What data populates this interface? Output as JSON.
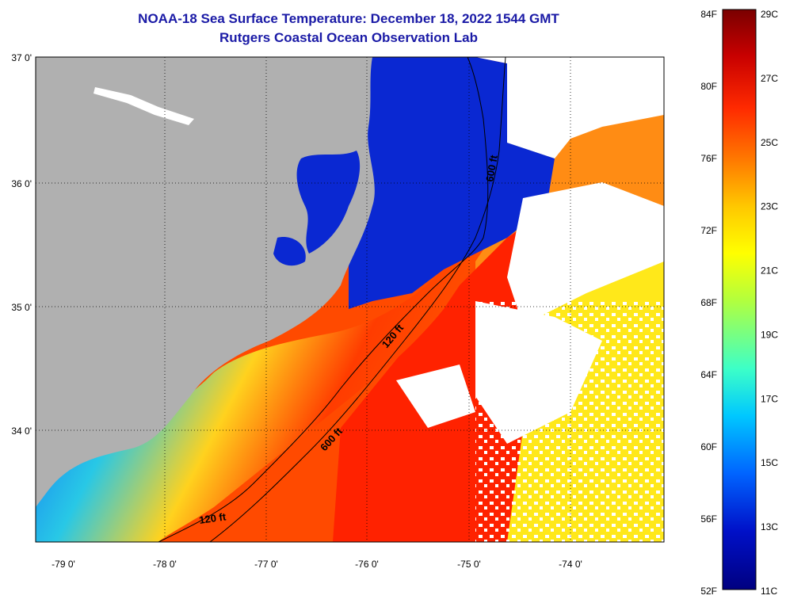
{
  "title": {
    "line1": "NOAA-18 Sea Surface Temperature:  December 18, 2022 1544 GMT",
    "line2": "Rutgers Coastal Ocean Observation Lab"
  },
  "axes": {
    "lat_labels": [
      "37 0'",
      "36 0'",
      "35 0'",
      "34 0'"
    ],
    "lon_labels": [
      "-79 0'",
      "-78 0'",
      "-77 0'",
      "-76 0'",
      "-75 0'",
      "-74 0'"
    ]
  },
  "contours": {
    "shelf_label": "120 ft",
    "slope_label": "600 ft"
  },
  "colorbar": {
    "fahrenheit_labels": [
      "84F",
      "80F",
      "76F",
      "72F",
      "68F",
      "64F",
      "60F",
      "56F",
      "52F"
    ],
    "celsius_labels": [
      "29C",
      "27C",
      "25C",
      "23C",
      "21C",
      "19C",
      "17C",
      "15C",
      "13C",
      "11C"
    ],
    "colors": [
      "#7a0000",
      "#c80000",
      "#ff2a00",
      "#ff7a00",
      "#ffc800",
      "#ffff00",
      "#b4ff3c",
      "#3cffc8",
      "#00c8ff",
      "#0064ff",
      "#0010c8",
      "#000080"
    ]
  },
  "colors": {
    "land": "#b0b0b0",
    "cloud": "#ffffff",
    "title": "#1a1aa6"
  }
}
